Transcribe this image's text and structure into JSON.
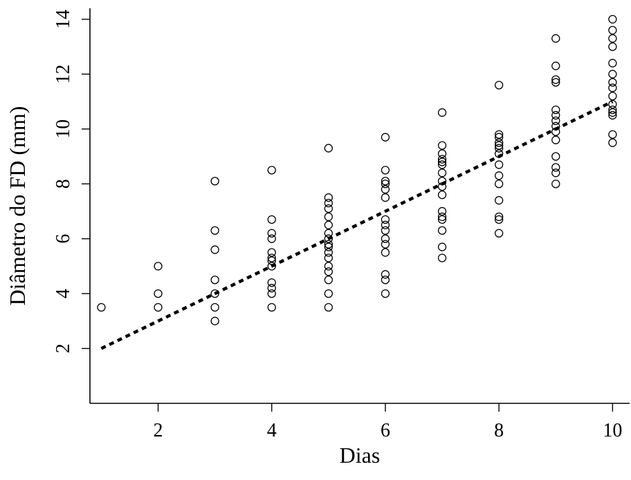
{
  "chart_data": {
    "type": "scatter",
    "title": "",
    "xlabel": "Dias",
    "ylabel": "Diâmetro do FD (mm)",
    "xlim": [
      0.8,
      10.3
    ],
    "ylim": [
      0.0,
      14.4
    ],
    "x_ticks": [
      2,
      4,
      6,
      8,
      10
    ],
    "x_tick_labels": [
      "2",
      "4",
      "6",
      "8",
      "10"
    ],
    "y_ticks": [
      2,
      4,
      6,
      8,
      10,
      12,
      14
    ],
    "y_tick_labels": [
      "2",
      "4",
      "6",
      "8",
      "10",
      "12",
      "14"
    ],
    "grid": false,
    "legend": "none",
    "series": [
      {
        "marker": "open-circle",
        "points": [
          [
            1,
            3.5
          ],
          [
            2,
            5.0
          ],
          [
            2,
            4.0
          ],
          [
            2,
            3.5
          ],
          [
            3,
            8.1
          ],
          [
            3,
            6.3
          ],
          [
            3,
            5.6
          ],
          [
            3,
            4.5
          ],
          [
            3,
            4.0
          ],
          [
            3,
            3.5
          ],
          [
            3,
            3.0
          ],
          [
            4,
            8.5
          ],
          [
            4,
            6.7
          ],
          [
            4,
            6.2
          ],
          [
            4,
            6.0
          ],
          [
            4,
            5.5
          ],
          [
            4,
            5.3
          ],
          [
            4,
            5.2
          ],
          [
            4,
            5.0
          ],
          [
            4,
            4.4
          ],
          [
            4,
            4.2
          ],
          [
            4,
            4.0
          ],
          [
            4,
            3.5
          ],
          [
            5,
            9.3
          ],
          [
            5,
            7.5
          ],
          [
            5,
            7.3
          ],
          [
            5,
            7.1
          ],
          [
            5,
            6.8
          ],
          [
            5,
            6.5
          ],
          [
            5,
            6.2
          ],
          [
            5,
            6.0
          ],
          [
            5,
            5.8
          ],
          [
            5,
            5.7
          ],
          [
            5,
            5.5
          ],
          [
            5,
            5.3
          ],
          [
            5,
            5.0
          ],
          [
            5,
            4.8
          ],
          [
            5,
            4.5
          ],
          [
            5,
            4.0
          ],
          [
            5,
            3.5
          ],
          [
            6,
            9.7
          ],
          [
            6,
            8.5
          ],
          [
            6,
            8.1
          ],
          [
            6,
            8.0
          ],
          [
            6,
            7.8
          ],
          [
            6,
            7.5
          ],
          [
            6,
            6.7
          ],
          [
            6,
            6.5
          ],
          [
            6,
            6.3
          ],
          [
            6,
            6.0
          ],
          [
            6,
            5.8
          ],
          [
            6,
            5.5
          ],
          [
            6,
            4.7
          ],
          [
            6,
            4.5
          ],
          [
            6,
            4.0
          ],
          [
            7,
            10.6
          ],
          [
            7,
            9.4
          ],
          [
            7,
            9.1
          ],
          [
            7,
            8.9
          ],
          [
            7,
            8.8
          ],
          [
            7,
            8.7
          ],
          [
            7,
            8.4
          ],
          [
            7,
            8.1
          ],
          [
            7,
            7.9
          ],
          [
            7,
            7.6
          ],
          [
            7,
            7.0
          ],
          [
            7,
            6.8
          ],
          [
            7,
            6.7
          ],
          [
            7,
            6.3
          ],
          [
            7,
            5.7
          ],
          [
            7,
            5.3
          ],
          [
            8,
            11.6
          ],
          [
            8,
            9.8
          ],
          [
            8,
            9.7
          ],
          [
            8,
            9.5
          ],
          [
            8,
            9.4
          ],
          [
            8,
            9.3
          ],
          [
            8,
            9.1
          ],
          [
            8,
            8.7
          ],
          [
            8,
            8.3
          ],
          [
            8,
            8.0
          ],
          [
            8,
            7.4
          ],
          [
            8,
            6.8
          ],
          [
            8,
            6.7
          ],
          [
            8,
            6.2
          ],
          [
            9,
            13.3
          ],
          [
            9,
            12.3
          ],
          [
            9,
            11.8
          ],
          [
            9,
            11.7
          ],
          [
            9,
            10.7
          ],
          [
            9,
            10.5
          ],
          [
            9,
            10.3
          ],
          [
            9,
            10.1
          ],
          [
            9,
            9.9
          ],
          [
            9,
            9.6
          ],
          [
            9,
            9.0
          ],
          [
            9,
            8.6
          ],
          [
            9,
            8.4
          ],
          [
            9,
            8.0
          ],
          [
            10,
            14.0
          ],
          [
            10,
            13.6
          ],
          [
            10,
            13.3
          ],
          [
            10,
            13.0
          ],
          [
            10,
            12.4
          ],
          [
            10,
            12.0
          ],
          [
            10,
            11.7
          ],
          [
            10,
            11.5
          ],
          [
            10,
            11.2
          ],
          [
            10,
            10.9
          ],
          [
            10,
            10.7
          ],
          [
            10,
            10.6
          ],
          [
            10,
            10.5
          ],
          [
            10,
            9.8
          ],
          [
            10,
            9.5
          ]
        ]
      }
    ],
    "trendline": {
      "style": "dashed",
      "x": [
        1,
        10
      ],
      "y": [
        2.0,
        11.0
      ]
    }
  }
}
